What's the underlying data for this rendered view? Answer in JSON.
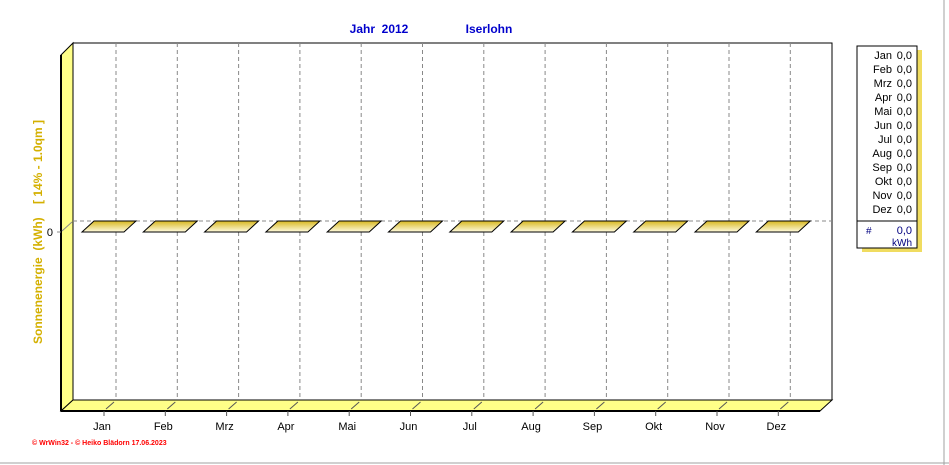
{
  "chart_data": {
    "type": "bar",
    "title": "Jahr  2012",
    "subtitle": "Iserlohn",
    "ylabel": "Sonnenenergie  (kWh)    [ 14% - 1.0qm ]",
    "categories": [
      "Jan",
      "Feb",
      "Mrz",
      "Apr",
      "Mai",
      "Jun",
      "Jul",
      "Aug",
      "Sep",
      "Okt",
      "Nov",
      "Dez"
    ],
    "values": [
      0,
      0,
      0,
      0,
      0,
      0,
      0,
      0,
      0,
      0,
      0,
      0
    ],
    "yticks": [
      "0"
    ],
    "grid": true,
    "legend_placement": "right",
    "legend": {
      "rows": [
        {
          "month": "Jan",
          "value": "0,0"
        },
        {
          "month": "Feb",
          "value": "0,0"
        },
        {
          "month": "Mrz",
          "value": "0,0"
        },
        {
          "month": "Apr",
          "value": "0,0"
        },
        {
          "month": "Mai",
          "value": "0,0"
        },
        {
          "month": "Jun",
          "value": "0,0"
        },
        {
          "month": "Jul",
          "value": "0,0"
        },
        {
          "month": "Aug",
          "value": "0,0"
        },
        {
          "month": "Sep",
          "value": "0,0"
        },
        {
          "month": "Okt",
          "value": "0,0"
        },
        {
          "month": "Nov",
          "value": "0,0"
        },
        {
          "month": "Dez",
          "value": "0,0"
        }
      ],
      "total_symbol": "#",
      "total_value": "0,0",
      "total_unit": "kWh"
    },
    "colors": {
      "bar": "#e8c830",
      "wall": "#ffff88",
      "title": "#0000cc",
      "ylabel": "#d4b000",
      "credit": "#ff0000"
    }
  },
  "credit": "© WrWin32 - © Heiko Blädorn 17.06.2023"
}
